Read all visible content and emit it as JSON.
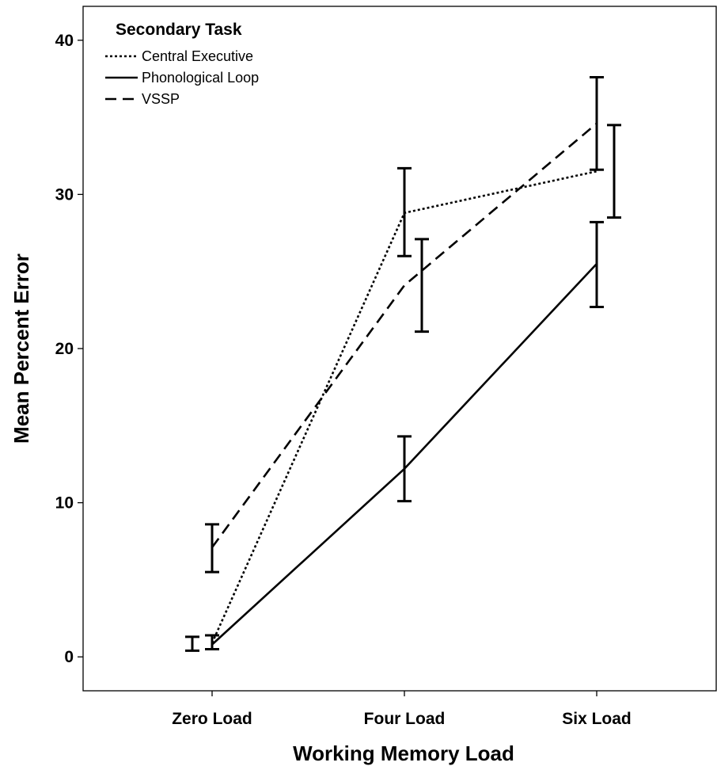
{
  "chart_data": {
    "type": "line",
    "title": "",
    "xlabel": "Working Memory Load",
    "ylabel": "Mean Percent Error",
    "categories": [
      "Zero Load",
      "Four Load",
      "Six Load"
    ],
    "ylim": [
      -2.2,
      42.2
    ],
    "yticks": [
      0,
      10,
      20,
      30,
      40
    ],
    "grid": false,
    "legend": {
      "title": "Secondary Task",
      "position": "top-left"
    },
    "series": [
      {
        "name": "Central Executive",
        "style": "dotted",
        "values": [
          0.9,
          28.8,
          31.5
        ],
        "error_low": [
          0.5,
          26.0,
          28.5
        ],
        "error_high": [
          1.4,
          31.7,
          34.5
        ]
      },
      {
        "name": "Phonological Loop",
        "style": "solid",
        "values": [
          0.8,
          12.2,
          25.5
        ],
        "error_low": [
          0.4,
          10.1,
          22.7
        ],
        "error_high": [
          1.3,
          14.3,
          28.2
        ]
      },
      {
        "name": "VSSP",
        "style": "dashed",
        "values": [
          7.1,
          24.1,
          34.6
        ],
        "error_low": [
          5.5,
          21.1,
          31.6
        ],
        "error_high": [
          8.6,
          27.1,
          37.6
        ]
      }
    ]
  }
}
